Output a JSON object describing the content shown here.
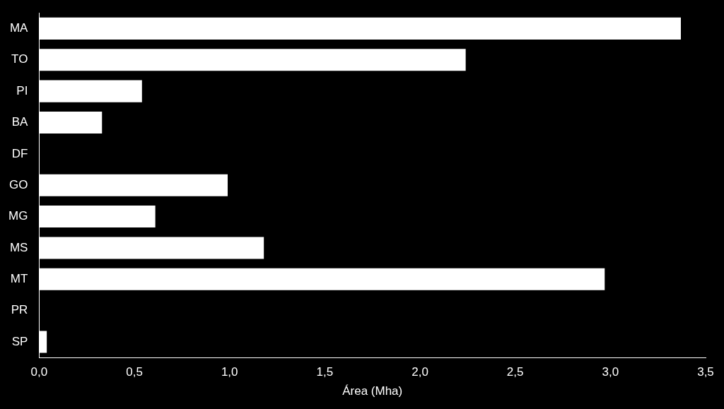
{
  "chart_data": {
    "type": "bar",
    "orientation": "horizontal",
    "categories": [
      "MA",
      "TO",
      "PI",
      "BA",
      "DF",
      "GO",
      "MG",
      "MS",
      "MT",
      "PR",
      "SP"
    ],
    "values": [
      3.37,
      2.24,
      0.54,
      0.33,
      0,
      0.99,
      0.61,
      1.18,
      2.97,
      0,
      0.04
    ],
    "color": "#ffffff",
    "x_label": "Área (Mha)",
    "xlim": [
      0,
      3.5
    ],
    "xticks": [
      {
        "value": 0,
        "label": "0,0"
      },
      {
        "value": 0.5,
        "label": "0,5"
      },
      {
        "value": 1,
        "label": "1,0"
      },
      {
        "value": 1.5,
        "label": "1,5"
      },
      {
        "value": 2,
        "label": "2,0"
      },
      {
        "value": 2.5,
        "label": "2,5"
      },
      {
        "value": 3,
        "label": "3,0"
      },
      {
        "value": 3.5,
        "label": "3,5"
      }
    ],
    "grid": false
  }
}
